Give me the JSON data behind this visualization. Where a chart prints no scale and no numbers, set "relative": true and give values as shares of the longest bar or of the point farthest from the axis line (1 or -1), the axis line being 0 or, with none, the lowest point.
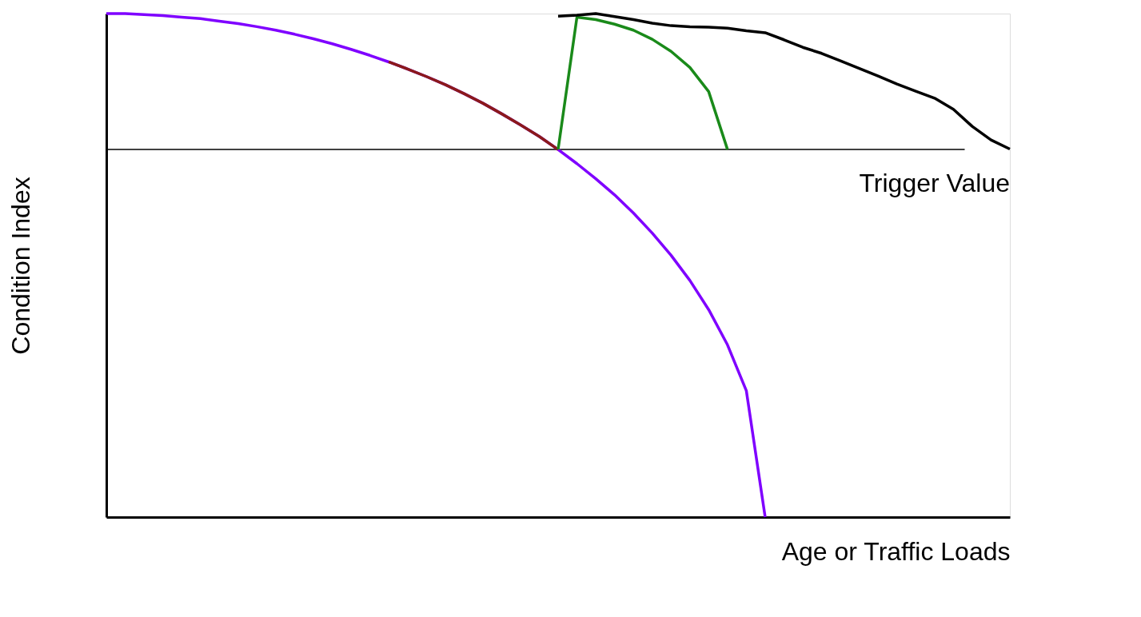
{
  "chart_data": {
    "type": "line",
    "relative": true,
    "xlabel": "Age or Traffic Loads",
    "ylabel": "Condition Index",
    "tick_labels": false,
    "grid": false,
    "legend": false,
    "marker": "none",
    "line_style": "solid",
    "categories": [
      null,
      null,
      null,
      null,
      null,
      null,
      null,
      null,
      null,
      null,
      null,
      null,
      null,
      null,
      null,
      null,
      null,
      null,
      null,
      null,
      null,
      null,
      null,
      null,
      null,
      null,
      null,
      null,
      null,
      null,
      null,
      null,
      null,
      null,
      null,
      null,
      null,
      null,
      null,
      null,
      null,
      null,
      null,
      null,
      null,
      null,
      null,
      null,
      null
    ],
    "series": [
      {
        "color": "#7f00ff",
        "values": [
          1,
          1.0,
          0.998,
          0.996,
          0.993,
          0.99,
          0.985,
          0.98,
          0.974,
          0.967,
          0.959,
          0.95,
          0.94,
          0.929,
          0.917,
          0.904,
          0.89,
          0.875,
          0.859,
          0.841,
          0.822,
          0.801,
          0.779,
          0.756,
          0.73,
          0.702,
          0.672,
          0.64,
          0.604,
          0.564,
          0.52,
          0.47,
          0.412,
          0.342,
          0.251,
          0,
          null,
          null,
          null,
          null,
          null,
          null,
          null,
          null,
          null,
          null,
          null,
          null,
          null
        ]
      },
      {
        "color": "#8b1a1a",
        "values": [
          null,
          null,
          null,
          null,
          null,
          null,
          null,
          null,
          null,
          null,
          null,
          null,
          null,
          null,
          null,
          0.904,
          0.89,
          0.875,
          0.859,
          0.841,
          0.822,
          0.801,
          0.779,
          0.756,
          0.73,
          null,
          null,
          null,
          null,
          null,
          null,
          null,
          null,
          null,
          null,
          null,
          null,
          null,
          null,
          null,
          null,
          null,
          null,
          null,
          null,
          null,
          null,
          null,
          null
        ]
      },
      {
        "color": "#1a8a1a",
        "values": [
          null,
          null,
          null,
          null,
          null,
          null,
          null,
          null,
          null,
          null,
          null,
          null,
          null,
          null,
          null,
          null,
          null,
          null,
          null,
          null,
          null,
          null,
          null,
          null,
          0.73,
          0.993,
          0.988,
          0.979,
          0.967,
          0.949,
          0.925,
          0.893,
          0.845,
          0.73,
          null,
          null,
          null,
          null,
          null,
          null,
          null,
          null,
          null,
          null,
          null,
          null,
          null,
          null,
          null
        ]
      },
      {
        "color": "#000000",
        "values": [
          null,
          null,
          null,
          null,
          null,
          null,
          null,
          null,
          null,
          null,
          null,
          null,
          null,
          null,
          null,
          null,
          null,
          null,
          null,
          null,
          null,
          null,
          null,
          null,
          0.995,
          0.997,
          1.0,
          0.994,
          0.988,
          0.981,
          0.976,
          0.974,
          0.973,
          0.971,
          0.966,
          0.962,
          0.948,
          0.933,
          0.921,
          0.906,
          0.891,
          0.876,
          0.86,
          0.846,
          0.832,
          0.81,
          0.776,
          0.749,
          0.731
        ]
      }
    ],
    "ref_lines": [
      {
        "axis": "y",
        "value": 0.73,
        "label": "Trigger Value",
        "color": "#000000",
        "line_style": "solid"
      }
    ]
  }
}
